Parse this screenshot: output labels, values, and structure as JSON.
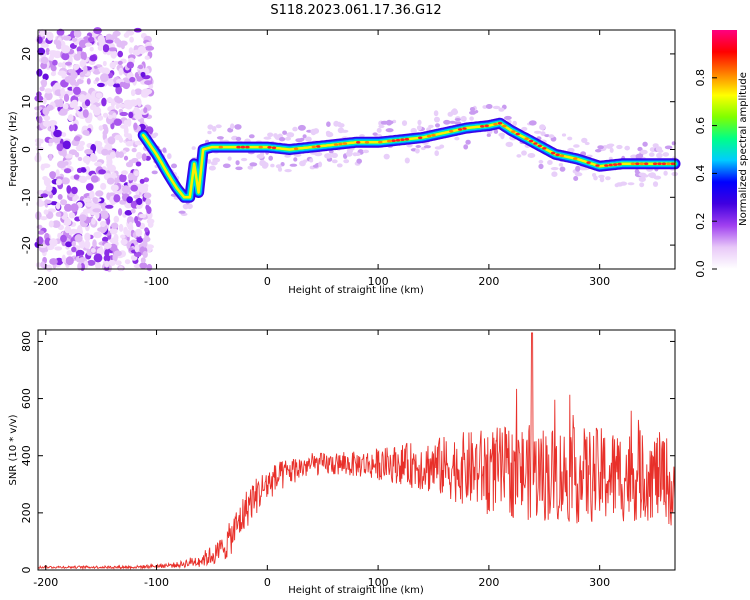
{
  "title": "S118.2023.061.17.36.G12",
  "chart_data": [
    {
      "type": "heatmap",
      "xlabel": "Height of straight line (km)",
      "ylabel": "Frequency (Hz)",
      "xlim": [
        -207,
        368
      ],
      "ylim": [
        -25,
        25
      ],
      "x_ticks": [
        -200,
        -100,
        0,
        100,
        200,
        300
      ],
      "y_ticks": [
        -20,
        -10,
        0,
        10,
        20
      ],
      "colorbar": {
        "label": "Normalized spectral amplitude",
        "range": [
          0.0,
          1.0
        ],
        "ticks": [
          "0.0",
          "0.2",
          "0.4",
          "0.6",
          "0.8"
        ],
        "tick_values": [
          0.0,
          0.2,
          0.4,
          0.6,
          0.8
        ],
        "colors": [
          "#ffffff",
          "#e8c8f8",
          "#a040f0",
          "#4000e0",
          "#0000ff",
          "#00ccff",
          "#00ff88",
          "#80ff00",
          "#ffff00",
          "#ff8000",
          "#ff0000",
          "#ff0080"
        ]
      },
      "noise_region_x": [
        -207,
        -105
      ],
      "ridge": {
        "x": [
          -112,
          -100,
          -90,
          -82,
          -75,
          -70,
          -66,
          -62,
          -58,
          -50,
          -30,
          0,
          20,
          40,
          60,
          80,
          100,
          120,
          140,
          160,
          180,
          200,
          210,
          220,
          240,
          260,
          280,
          300,
          320,
          340,
          368
        ],
        "frequency_hz": [
          3,
          -1,
          -5,
          -8,
          -10,
          -10,
          -3,
          -9,
          0,
          0.5,
          0.5,
          0.5,
          0,
          0.5,
          1,
          1.5,
          1.5,
          2,
          2.5,
          3.5,
          4.5,
          5,
          5.5,
          4,
          1.5,
          -1,
          -2,
          -3.5,
          -3,
          -3,
          -3
        ]
      }
    },
    {
      "type": "line",
      "xlabel": "Height of straight line (km)",
      "ylabel": "SNR (10 * v/v)",
      "xlim": [
        -207,
        368
      ],
      "ylim": [
        0,
        840
      ],
      "x_ticks": [
        -200,
        -100,
        0,
        100,
        200,
        300
      ],
      "y_ticks": [
        0,
        200,
        400,
        600,
        800
      ],
      "color": "#e8302a",
      "envelope": {
        "x": [
          -207,
          -120,
          -80,
          -60,
          -45,
          -35,
          -25,
          -15,
          0,
          20,
          40,
          60,
          80,
          100,
          120,
          140,
          160,
          180,
          200,
          220,
          240,
          260,
          280,
          300,
          320,
          340,
          360,
          368
        ],
        "snr": [
          10,
          10,
          18,
          35,
          60,
          100,
          170,
          240,
          300,
          345,
          370,
          370,
          370,
          370,
          370,
          365,
          360,
          355,
          350,
          345,
          340,
          335,
          330,
          330,
          330,
          330,
          330,
          220
        ],
        "spread": [
          4,
          5,
          10,
          25,
          40,
          60,
          70,
          70,
          60,
          50,
          40,
          40,
          45,
          55,
          70,
          90,
          110,
          130,
          150,
          160,
          170,
          170,
          170,
          170,
          165,
          160,
          150,
          140
        ]
      },
      "peak": {
        "x": 239,
        "snr": 830
      }
    }
  ]
}
